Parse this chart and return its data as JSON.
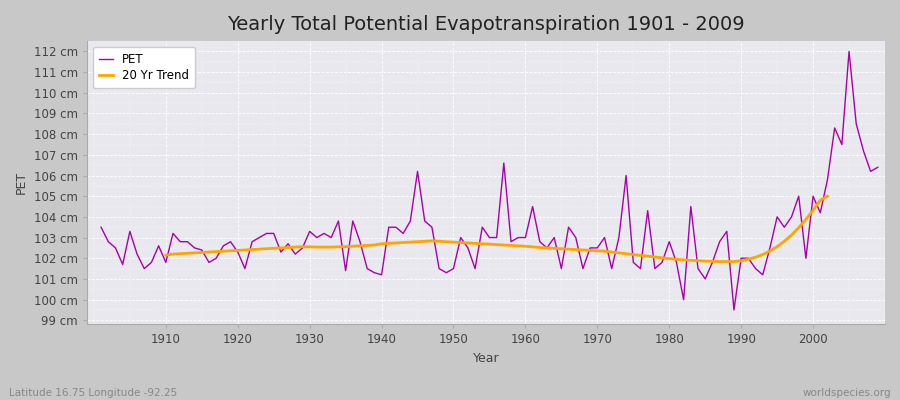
{
  "title": "Yearly Total Potential Evapotranspiration 1901 - 2009",
  "xlabel": "Year",
  "ylabel": "PET",
  "bottom_left_label": "Latitude 16.75 Longitude -92.25",
  "bottom_right_label": "worldspecies.org",
  "pet_color": "#aa00aa",
  "trend_color": "#ffa500",
  "fig_bg_color": "#c8c8c8",
  "plot_bg_color": "#e8e8ee",
  "ylim": [
    98.8,
    112.5
  ],
  "yticks": [
    99,
    100,
    101,
    102,
    103,
    104,
    105,
    106,
    107,
    108,
    109,
    110,
    111,
    112
  ],
  "xlim": [
    1899,
    2010
  ],
  "years": [
    1901,
    1902,
    1903,
    1904,
    1905,
    1906,
    1907,
    1908,
    1909,
    1910,
    1911,
    1912,
    1913,
    1914,
    1915,
    1916,
    1917,
    1918,
    1919,
    1920,
    1921,
    1922,
    1923,
    1924,
    1925,
    1926,
    1927,
    1928,
    1929,
    1930,
    1931,
    1932,
    1933,
    1934,
    1935,
    1936,
    1937,
    1938,
    1939,
    1940,
    1941,
    1942,
    1943,
    1944,
    1945,
    1946,
    1947,
    1948,
    1949,
    1950,
    1951,
    1952,
    1953,
    1954,
    1955,
    1956,
    1957,
    1958,
    1959,
    1960,
    1961,
    1962,
    1963,
    1964,
    1965,
    1966,
    1967,
    1968,
    1969,
    1970,
    1971,
    1972,
    1973,
    1974,
    1975,
    1976,
    1977,
    1978,
    1979,
    1980,
    1981,
    1982,
    1983,
    1984,
    1985,
    1986,
    1987,
    1988,
    1989,
    1990,
    1991,
    1992,
    1993,
    1994,
    1995,
    1996,
    1997,
    1998,
    1999,
    2000,
    2001,
    2002,
    2003,
    2004,
    2005,
    2006,
    2007,
    2008,
    2009
  ],
  "pet_values": [
    103.5,
    102.8,
    102.5,
    101.7,
    103.3,
    102.2,
    101.5,
    101.8,
    102.6,
    101.8,
    103.2,
    102.8,
    102.8,
    102.5,
    102.4,
    101.8,
    102.0,
    102.6,
    102.8,
    102.3,
    101.5,
    102.8,
    103.0,
    103.2,
    103.2,
    102.3,
    102.7,
    102.2,
    102.5,
    103.3,
    103.0,
    103.2,
    103.0,
    103.8,
    101.4,
    103.8,
    102.8,
    101.5,
    101.3,
    101.2,
    103.5,
    103.5,
    103.2,
    103.8,
    106.2,
    103.8,
    103.5,
    101.5,
    101.3,
    101.5,
    103.0,
    102.5,
    101.5,
    103.5,
    103.0,
    103.0,
    106.6,
    102.8,
    103.0,
    103.0,
    104.5,
    102.8,
    102.5,
    103.0,
    101.5,
    103.5,
    103.0,
    101.5,
    102.5,
    102.5,
    103.0,
    101.5,
    103.0,
    106.0,
    101.8,
    101.5,
    104.3,
    101.5,
    101.8,
    102.8,
    101.8,
    100.0,
    104.5,
    101.5,
    101.0,
    101.8,
    102.8,
    103.3,
    99.5,
    102.0,
    102.0,
    101.5,
    101.2,
    102.5,
    104.0,
    103.5,
    104.0,
    105.0,
    102.0,
    105.0,
    104.2,
    105.8,
    108.3,
    107.5,
    112.0,
    108.5,
    107.2,
    106.2,
    106.4
  ],
  "trend_start_year": 1910,
  "trend_values": [
    102.15,
    102.2,
    102.22,
    102.24,
    102.26,
    102.28,
    102.3,
    102.32,
    102.34,
    102.36,
    102.38,
    102.4,
    102.42,
    102.44,
    102.46,
    102.48,
    102.5,
    102.52,
    102.54,
    102.56,
    102.55,
    102.54,
    102.54,
    102.54,
    102.55,
    102.56,
    102.58,
    102.6,
    102.62,
    102.64,
    102.7,
    102.72,
    102.74,
    102.76,
    102.78,
    102.8,
    102.82,
    102.84,
    102.82,
    102.8,
    102.78,
    102.76,
    102.74,
    102.72,
    102.7,
    102.68,
    102.66,
    102.64,
    102.62,
    102.6,
    102.58,
    102.55,
    102.52,
    102.5,
    102.48,
    102.46,
    102.44,
    102.42,
    102.4,
    102.38,
    102.36,
    102.34,
    102.3,
    102.26,
    102.22,
    102.18,
    102.14,
    102.1,
    102.06,
    102.02,
    101.98,
    101.95,
    101.92,
    101.9,
    101.88,
    101.86,
    101.85,
    101.84,
    101.84,
    101.84,
    101.88,
    101.95,
    102.05,
    102.18,
    102.35,
    102.56,
    102.82,
    103.12,
    103.48,
    103.88,
    104.32,
    104.8,
    105.0
  ],
  "legend_pet": "PET",
  "legend_trend": "20 Yr Trend",
  "title_fontsize": 14,
  "label_fontsize": 9,
  "tick_fontsize": 8.5
}
